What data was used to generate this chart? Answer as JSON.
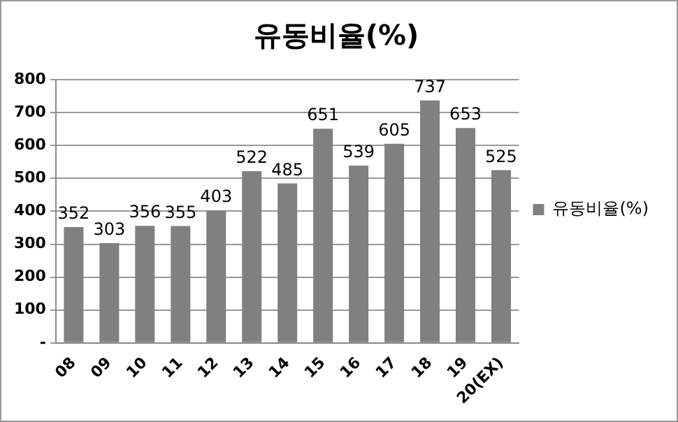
{
  "chart_data": {
    "type": "bar",
    "title": "유동비율(%)",
    "categories": [
      "08",
      "09",
      "10",
      "11",
      "12",
      "13",
      "14",
      "15",
      "16",
      "17",
      "18",
      "19",
      "20(EX)"
    ],
    "series": [
      {
        "name": "유동비율(%)",
        "color": "#808080",
        "values": [
          352,
          303,
          356,
          355,
          403,
          522,
          485,
          651,
          539,
          605,
          737,
          653,
          525
        ]
      }
    ],
    "ylim": [
      0,
      800
    ],
    "yticks": [
      {
        "value": 0,
        "label": "-"
      },
      100,
      200,
      300,
      400,
      500,
      600,
      700,
      800
    ],
    "grid": "y",
    "legend": "right",
    "data_labels": true
  }
}
